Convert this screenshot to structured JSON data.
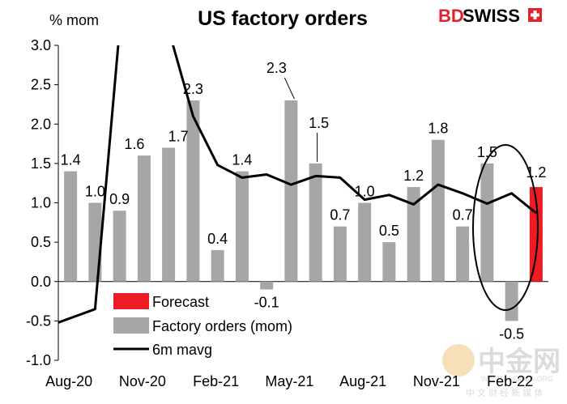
{
  "header": {
    "title": "US factory orders",
    "unit": "% mom"
  },
  "branding": {
    "logo_bd": "BD",
    "logo_swiss": "SWISS",
    "watermark_cn": "中金网",
    "watermark_sub": "中 文 财 经 新 媒 体",
    "watermark_url": "WWW.CNGOLD.ORG"
  },
  "colors": {
    "bar": "#a6a6a6",
    "forecast": "#ed1c24",
    "line": "#000000",
    "brand_red": "#e3212b"
  },
  "chart_data": {
    "type": "bar",
    "title": "US factory orders",
    "ylabel": "% mom",
    "ylim": [
      -1.0,
      3.0
    ],
    "yticks": [
      "3.0",
      "2.5",
      "2.0",
      "1.5",
      "1.0",
      "0.5",
      "0.0",
      "-0.5",
      "-1.0"
    ],
    "xtick_labels": [
      "Aug-20",
      "Nov-20",
      "Feb-21",
      "May-21",
      "Aug-21",
      "Nov-21",
      "Feb-22"
    ],
    "legend_position": "bottom-center",
    "series": [
      {
        "name": "Factory orders (mom)",
        "type": "bar",
        "values": [
          1.4,
          1.0,
          0.9,
          1.6,
          1.7,
          2.3,
          0.4,
          1.4,
          -0.1,
          2.3,
          1.5,
          0.7,
          1.0,
          0.5,
          1.2,
          1.8,
          0.7,
          1.5,
          -0.5
        ],
        "labels": [
          "1.4",
          "1.0",
          "0.9",
          "1.6",
          "1.7",
          "2.3",
          "0.4",
          "1.4",
          "-0.1",
          "2.3",
          "1.5",
          "0.7",
          "1.0",
          "0.5",
          "1.2",
          "1.8",
          "0.7",
          "1.5",
          "-0.5"
        ]
      },
      {
        "name": "Forecast",
        "type": "bar",
        "values": [
          null,
          null,
          null,
          null,
          null,
          null,
          null,
          null,
          null,
          null,
          null,
          null,
          null,
          null,
          null,
          null,
          null,
          null,
          null,
          1.2
        ],
        "labels": [
          "1.2"
        ]
      },
      {
        "name": "6m mavg",
        "type": "line",
        "values": [
          -0.52,
          -0.35,
          3.2,
          3.7,
          3.2,
          2.1,
          1.48,
          1.32,
          1.36,
          1.23,
          1.34,
          1.32,
          1.04,
          1.1,
          0.98,
          1.23,
          1.12,
          0.99,
          1.12,
          0.87
        ]
      }
    ]
  }
}
